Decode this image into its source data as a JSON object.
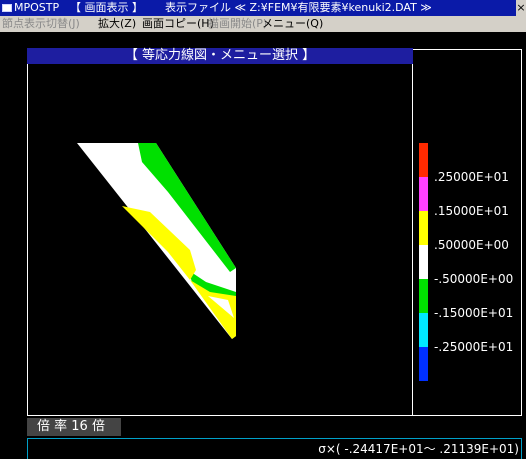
{
  "window": {
    "app_name": "MPOSTP",
    "mode": "【 画面表示 】",
    "file_label": "表示ファイル ≪ Z:¥FEM¥有限要素¥kenuki2.DAT ≫",
    "close_glyph": "×"
  },
  "menu": {
    "items": [
      {
        "label": "節点表示切替(J)",
        "enabled": false
      },
      {
        "label": "拡大(Z)",
        "enabled": true
      },
      {
        "label": "画面コピー(H)",
        "enabled": true
      },
      {
        "label": "描画開始(P)",
        "enabled": false
      },
      {
        "label": "メニュー(Q)",
        "enabled": true
      }
    ]
  },
  "caption": "【 等応力線図・メニュー選択 】",
  "legend": {
    "colors": [
      "#ff2a00",
      "#ff40ff",
      "#ffff00",
      "#ffffff",
      "#00e000",
      "#00e8ff",
      "#0030ff"
    ],
    "labels": [
      ".25000E+01",
      ".15000E+01",
      ".50000E+00",
      "-.50000E+00",
      "-.15000E+01",
      "-.25000E+01"
    ]
  },
  "zoom_label": "倍 率 16 倍",
  "stress_range": "σ×( -.24417E+01～ .21139E+01)",
  "colors": {
    "title_bar": "#0a1aa8",
    "menu_bar": "#d4d0c8",
    "caption_bar": "#1e1ea0",
    "background": "#000000"
  }
}
